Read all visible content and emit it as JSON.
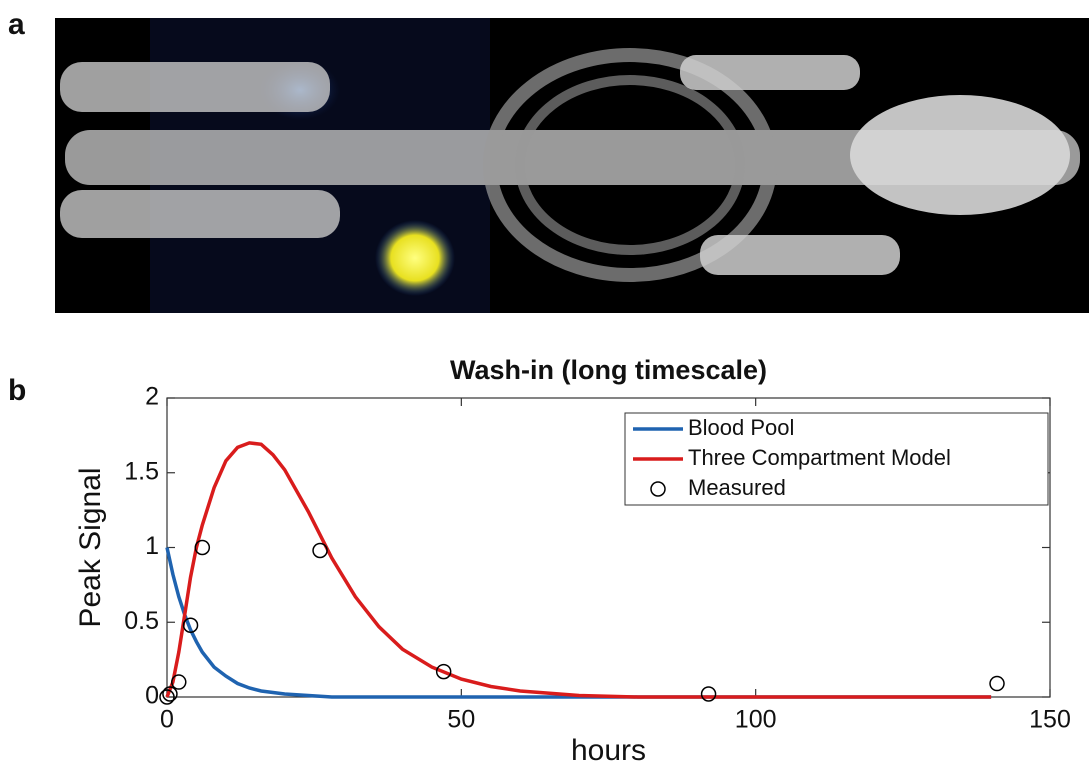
{
  "panel_labels": [
    "a",
    "b"
  ],
  "chart_data": {
    "type": "line",
    "title": "Wash-in (long timescale)",
    "x_label": "hours",
    "y_label": "Peak Signal",
    "xlim": [
      0,
      150
    ],
    "xticks": [
      0,
      50,
      100,
      150
    ],
    "ylim": [
      0,
      2
    ],
    "yticks": [
      0,
      0.5,
      1,
      1.5,
      2
    ],
    "legend": "upper right",
    "series": [
      {
        "name": "Blood Pool",
        "color": "#1f63b0",
        "style": "line",
        "x": [
          0,
          1,
          2,
          3,
          4,
          5,
          6,
          8,
          10,
          12,
          14,
          16,
          18,
          20,
          24,
          28,
          32,
          36,
          40,
          45,
          50,
          55,
          60,
          70,
          80,
          100,
          120,
          140
        ],
        "values": [
          1,
          0.82,
          0.67,
          0.55,
          0.45,
          0.37,
          0.3,
          0.2,
          0.14,
          0.09,
          0.06,
          0.04,
          0.03,
          0.02,
          0.01,
          0,
          0,
          0,
          0,
          0,
          0,
          0,
          0,
          0,
          0,
          0,
          0,
          0
        ]
      },
      {
        "name": "Three Compartment Model",
        "color": "#d91c1c",
        "style": "line",
        "x": [
          0,
          1,
          2,
          3,
          4,
          5,
          6,
          8,
          10,
          12,
          14,
          16,
          18,
          20,
          24,
          28,
          32,
          36,
          40,
          45,
          50,
          55,
          60,
          70,
          80,
          100,
          120,
          140
        ],
        "values": [
          0,
          0.1,
          0.3,
          0.55,
          0.8,
          1.0,
          1.15,
          1.4,
          1.58,
          1.67,
          1.7,
          1.69,
          1.62,
          1.52,
          1.24,
          0.93,
          0.67,
          0.47,
          0.32,
          0.2,
          0.12,
          0.07,
          0.04,
          0.01,
          0,
          0,
          0,
          0
        ]
      },
      {
        "name": "Measured",
        "color": "#000000",
        "style": "marker",
        "x": [
          0,
          0.5,
          2,
          4,
          6,
          26,
          47,
          92,
          141
        ],
        "values": [
          0,
          0.02,
          0.1,
          0.48,
          1.0,
          0.98,
          0.17,
          0.02,
          0.09
        ]
      }
    ]
  }
}
